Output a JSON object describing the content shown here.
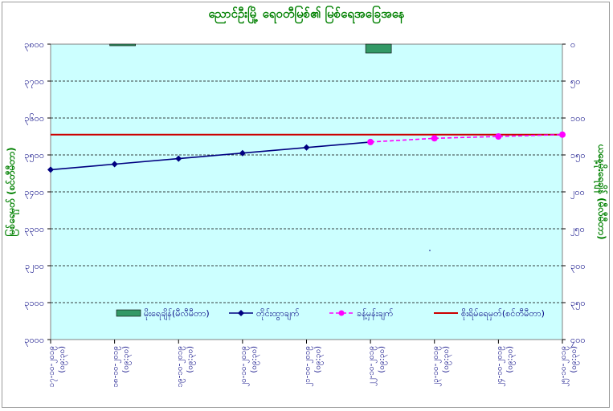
{
  "chart_data": {
    "type": "line",
    "title": "ညောင်ဦးမြို့ ရေ၀တီမြစ်၏ မြစ်ရေအခြေအနေ",
    "ylabel": "မြစ်ရေမှတ် (စင်တီမီတာ)",
    "y2label": "ယနေ့မိုးရေချိန် (မီလီမီတာ)",
    "categories": [
      "၁၇-၁၀-၂၀၁၉ (၀၉:၃၀)",
      "၁၈-၁၀-၂၀၁၉ (၀၉:၃၀)",
      "၁၉-၁၀-၂၀၁၉ (၀၉:၃၀)",
      "၂၀-၁၀-၂၀၁၉ (၀၉:၃၀)",
      "၂၁-၁၀-၂၀၁၉ (၀၉:၃၀)",
      "၂၂-၁၀-၂၀၁၉ (၀၉:၃၀)",
      "၂၃-၁၀-၂၀၁၉ (၀၉:၃၀)",
      "၂၄-၁၀-၂၀၁၉ (၀၉:၃၀)",
      "၂၅-၁၀-၂၀၁၉ (၀၉:၃၀)"
    ],
    "ylim": [
      3000,
      3800
    ],
    "y2lim": [
      0,
      400
    ],
    "yticks": [
      "၃၀၀၀",
      "၃၁၀၀",
      "၃၂၀၀",
      "၃၃၀၀",
      "၃၄၀၀",
      "၃၅၀၀",
      "၃၆၀၀",
      "၃၇၀၀",
      "၃၈၀၀"
    ],
    "y2ticks": [
      "၀",
      "၅၀",
      "၁၀၀",
      "၁၅၀",
      "၂၀၀",
      "၂၅၀",
      "၃၀၀",
      "၃၅၀",
      "၄၀၀"
    ],
    "series": [
      {
        "name": "မိုးရေချိန်(မီလီမီတာ)",
        "kind": "bar",
        "axis": "right",
        "color": "#339966",
        "values": [
          0,
          2,
          0,
          0,
          0,
          12,
          0,
          0,
          0
        ]
      },
      {
        "name": "တိုင်းထွာချက်",
        "kind": "line",
        "axis": "left",
        "color": "#000080",
        "values": [
          3460,
          3475,
          3490,
          3505,
          3520,
          3535,
          null,
          null,
          null
        ]
      },
      {
        "name": "ခန့်မှန်းချက်",
        "kind": "line",
        "axis": "left",
        "dashed": true,
        "color": "#ff00ff",
        "values": [
          null,
          null,
          null,
          null,
          null,
          3535,
          3545,
          3550,
          3555
        ]
      },
      {
        "name": "စိုးရိမ်ရေမှတ်(စင်တီမီတာ)",
        "kind": "hline",
        "axis": "left",
        "color": "#cc0000",
        "value": 3555
      }
    ],
    "grid": true,
    "legend_position": "bottom-center"
  },
  "colors": {
    "plot_bg": "#ccffff",
    "title": "#008000",
    "tick_text": "#000080"
  }
}
